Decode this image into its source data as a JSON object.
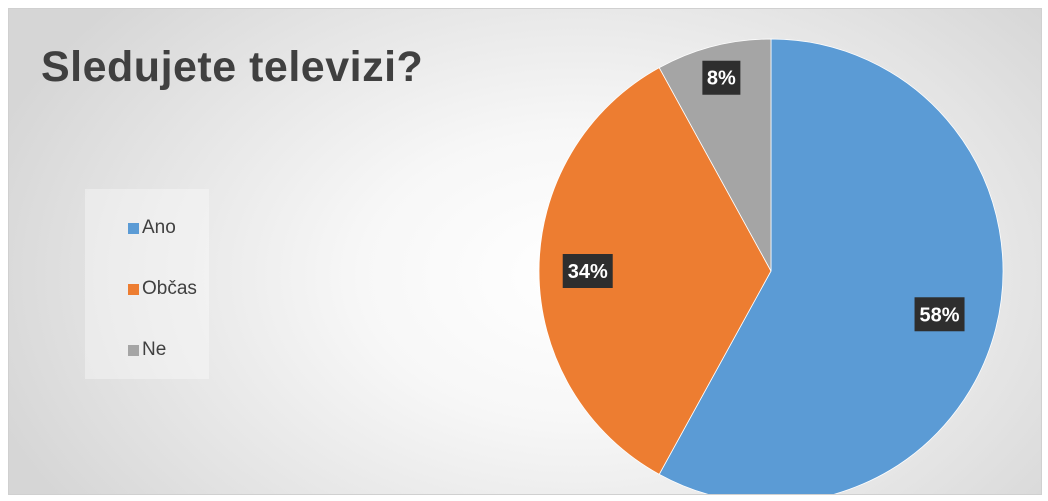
{
  "chart_data": {
    "type": "pie",
    "title": "Sledujete televizi?",
    "categories": [
      "Ano",
      "Občas",
      "Ne"
    ],
    "values": [
      58,
      34,
      8
    ],
    "data_labels": [
      "58%",
      "34%",
      "8%"
    ],
    "colors": [
      "#5b9bd5",
      "#ed7d31",
      "#a5a5a5"
    ],
    "legend_position": "left",
    "start_angle": "top, clockwise"
  }
}
